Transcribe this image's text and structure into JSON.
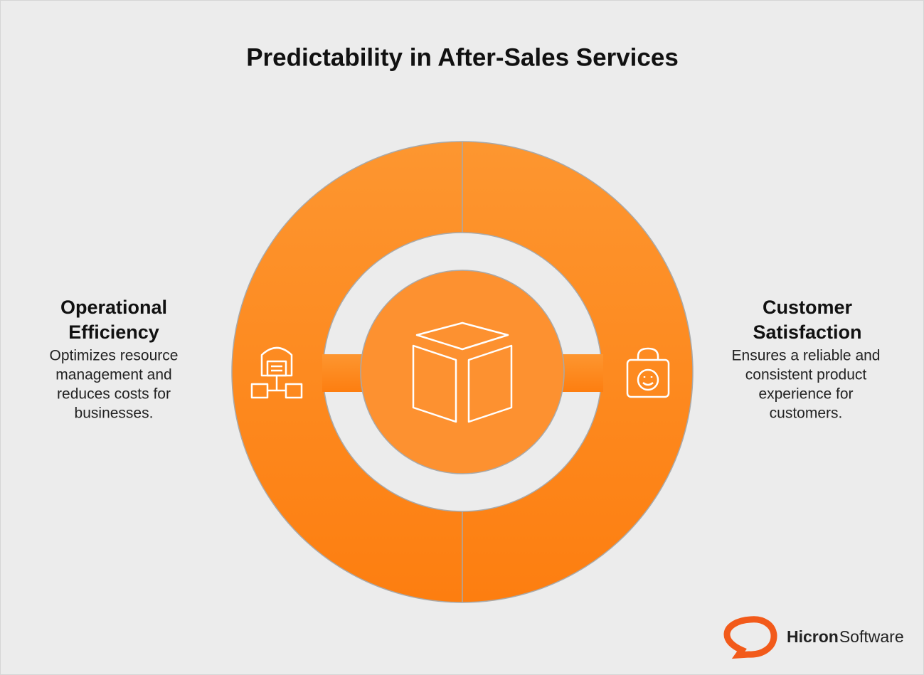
{
  "title": "Predictability in After-Sales Services",
  "left": {
    "heading": [
      "Operational",
      "Efficiency"
    ],
    "description": [
      "Optimizes resource",
      "management and",
      "reduces costs for",
      "businesses."
    ]
  },
  "right": {
    "heading": [
      "Customer",
      "Satisfaction"
    ],
    "description": [
      "Ensures a reliable and",
      "consistent product",
      "experience for",
      "customers."
    ]
  },
  "logo": {
    "brand": "Hicron",
    "suffix": "Software"
  }
}
